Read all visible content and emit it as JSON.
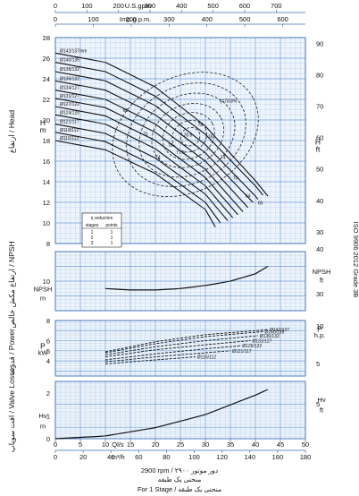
{
  "chart_data": {
    "type": "line",
    "top_axes": {
      "usgpm": {
        "label": "U.S.gpm",
        "ticks": [
          "0",
          "100",
          "200",
          "300",
          "400",
          "500",
          "600",
          "700"
        ]
      },
      "impgpm": {
        "label": "Imp.g.p.m.",
        "ticks": [
          "0",
          "100",
          "200",
          "300",
          "400",
          "500",
          "600"
        ]
      }
    },
    "bottom_axes": {
      "qls": {
        "label": "Ql/s",
        "ticks": [
          "0",
          "5",
          "10",
          "15",
          "20",
          "25",
          "30",
          "35",
          "40",
          "45",
          "50"
        ],
        "range": [
          0,
          50
        ]
      },
      "m3h": {
        "label": "m³/h",
        "ticks": [
          "0",
          "20",
          "40",
          "60",
          "80",
          "100",
          "120",
          "140",
          "160",
          "180"
        ],
        "range": [
          0,
          180
        ]
      }
    },
    "footer": {
      "speed": "2900 rpm / دور موتور ۲۹۰۰",
      "curve_fa": "منحنی یک طبقه",
      "stage": "For 1 Stage / منحنی یک طبقه"
    },
    "side_note": "ISO 9906:2012 Grade 3B",
    "head": {
      "left_label": "ارتفاع / Head",
      "unit_left": "H m",
      "unit_right": "H ft",
      "range_m": [
        8,
        28
      ],
      "left_ticks": [
        "8",
        "10",
        "12",
        "14",
        "16",
        "18",
        "20",
        "22",
        "24",
        "26",
        "28"
      ],
      "right_ticks": [
        "30",
        "40",
        "50",
        "60",
        "70",
        "80",
        "90"
      ],
      "efficiency_label": "η=78.8%",
      "efficiency_contours": [
        "60",
        "70",
        "74",
        "76",
        "77.5",
        "78.5",
        "78",
        "76",
        "74",
        "70",
        "64",
        "60"
      ],
      "series": [
        {
          "name": "Ø142/137mm",
          "x": [
            0,
            10,
            20,
            30,
            40,
            42.5
          ],
          "y": [
            26.5,
            25.6,
            23.2,
            19.4,
            14.1,
            12.6
          ]
        },
        {
          "name": "Ø140/135",
          "x": [
            0,
            10,
            20,
            30,
            40,
            41.5
          ],
          "y": [
            25.6,
            24.7,
            22.3,
            18.6,
            13.6,
            12.7
          ]
        },
        {
          "name": "Ø138/132",
          "x": [
            0,
            10,
            20,
            30,
            40,
            40.5
          ],
          "y": [
            24.7,
            23.8,
            21.4,
            17.6,
            12.6,
            12.3
          ]
        },
        {
          "name": "Ø136/132",
          "x": [
            0,
            10,
            20,
            30,
            39.5
          ],
          "y": [
            23.8,
            22.9,
            20.5,
            16.8,
            12.0
          ]
        },
        {
          "name": "Ø134/127",
          "x": [
            0,
            10,
            20,
            30,
            38.5
          ],
          "y": [
            22.9,
            22.0,
            19.6,
            16.0,
            11.5
          ]
        },
        {
          "name": "Ø131/127",
          "x": [
            0,
            10,
            20,
            30,
            37.5
          ],
          "y": [
            22.1,
            21.2,
            18.8,
            15.2,
            11.1
          ]
        },
        {
          "name": "Ø127/122",
          "x": [
            0,
            10,
            20,
            30,
            36.5
          ],
          "y": [
            21.3,
            20.4,
            18.0,
            14.4,
            10.8
          ]
        },
        {
          "name": "Ø124/120",
          "x": [
            0,
            10,
            20,
            30,
            35.5
          ],
          "y": [
            20.5,
            19.6,
            17.2,
            13.6,
            10.5
          ]
        },
        {
          "name": "Ø121/117",
          "x": [
            0,
            10,
            20,
            30,
            34.5
          ],
          "y": [
            19.6,
            18.7,
            16.3,
            12.8,
            10.2
          ]
        },
        {
          "name": "Ø118/112",
          "x": [
            0,
            10,
            20,
            30,
            33.0
          ],
          "y": [
            18.8,
            17.9,
            15.5,
            12.0,
            10.0
          ]
        },
        {
          "name": "Ø116/113",
          "x": [
            0,
            10,
            20,
            30,
            32.0
          ],
          "y": [
            18.0,
            17.1,
            14.8,
            11.3,
            9.6
          ]
        }
      ],
      "reduction_table": {
        "title": "η reduction",
        "headers": [
          "stages",
          "points"
        ],
        "rows": [
          [
            "1",
            "1"
          ],
          [
            "2",
            "1"
          ],
          [
            "3",
            "1"
          ]
        ]
      }
    },
    "npsh": {
      "left_label": "ارتفاع مکش خالص / NPSH",
      "unit_left": "NPSH m",
      "unit_right": "NPSH ft",
      "range_m": [
        8,
        12
      ],
      "left_ticks": [
        "10"
      ],
      "right_ticks": [
        "30",
        "40"
      ],
      "series": [
        {
          "name": "NPSH",
          "x": [
            10,
            15,
            20,
            25,
            30,
            35,
            40,
            42.5
          ],
          "y": [
            9.5,
            9.4,
            9.4,
            9.5,
            9.7,
            10.0,
            10.5,
            11.0
          ]
        }
      ]
    },
    "power": {
      "left_label": "قدرت / Power",
      "unit_left": "P kW",
      "unit_right": "P h.p.",
      "range_kw": [
        2.5,
        8
      ],
      "left_ticks": [
        "4",
        "5",
        "6",
        "8"
      ],
      "right_ticks": [
        "5",
        "10"
      ],
      "series": [
        {
          "name": "Ø142/137",
          "x": [
            10,
            20,
            30,
            42.5
          ],
          "y": [
            4.9,
            5.9,
            6.6,
            7.1
          ]
        },
        {
          "name": "Ø140/135",
          "x": [
            10,
            20,
            30,
            41.5
          ],
          "y": [
            4.8,
            5.7,
            6.4,
            6.9
          ]
        },
        {
          "name": "Ø136/132",
          "x": [
            10,
            20,
            30,
            40.5
          ],
          "y": [
            4.6,
            5.4,
            6.0,
            6.5
          ]
        },
        {
          "name": "Ø131/127",
          "x": [
            10,
            20,
            30,
            39.0
          ],
          "y": [
            4.4,
            5.1,
            5.6,
            6.0
          ]
        },
        {
          "name": "Ø126/122",
          "x": [
            10,
            20,
            30,
            37.0
          ],
          "y": [
            4.1,
            4.7,
            5.2,
            5.5
          ]
        },
        {
          "name": "Ø121/117",
          "x": [
            10,
            20,
            30,
            35.0
          ],
          "y": [
            3.9,
            4.4,
            4.8,
            5.0
          ]
        },
        {
          "name": "Ø116/112",
          "x": [
            10,
            20,
            28.0
          ],
          "y": [
            3.7,
            4.1,
            4.4
          ]
        }
      ]
    },
    "losses": {
      "left_label": "افت سوپاپ / Valve Losses",
      "unit_left": "Hv m",
      "unit_right": "Hv ft",
      "range_m": [
        0,
        2.5
      ],
      "left_ticks": [
        "0",
        "1",
        "2"
      ],
      "right_ticks": [
        "5"
      ],
      "series": [
        {
          "name": "Hv",
          "x": [
            0,
            10,
            20,
            30,
            40,
            42.5
          ],
          "y": [
            0,
            0.12,
            0.48,
            1.05,
            1.9,
            2.15
          ]
        }
      ]
    }
  }
}
